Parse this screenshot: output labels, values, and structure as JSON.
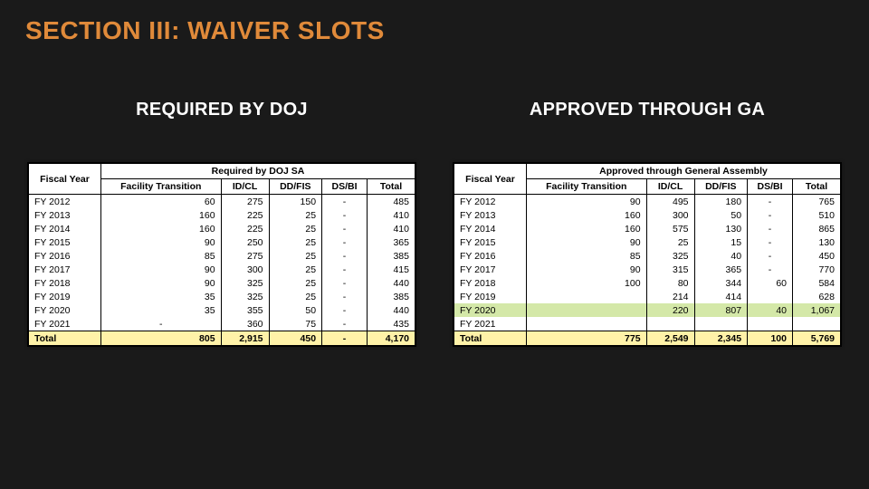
{
  "title": "SECTION III: WAIVER SLOTS",
  "left": {
    "heading": "REQUIRED BY DOJ",
    "super_header": "Required by DOJ SA",
    "fiscal_hdr": "Fiscal Year",
    "cols": [
      "Facility Transition",
      "ID/CL",
      "DD/FIS",
      "DS/BI",
      "Total"
    ],
    "rows": [
      {
        "fy": "FY 2012",
        "v": [
          "60",
          "275",
          "150",
          "-",
          "485"
        ],
        "hl": false
      },
      {
        "fy": "FY 2013",
        "v": [
          "160",
          "225",
          "25",
          "-",
          "410"
        ],
        "hl": false
      },
      {
        "fy": "FY 2014",
        "v": [
          "160",
          "225",
          "25",
          "-",
          "410"
        ],
        "hl": false
      },
      {
        "fy": "FY 2015",
        "v": [
          "90",
          "250",
          "25",
          "-",
          "365"
        ],
        "hl": false
      },
      {
        "fy": "FY 2016",
        "v": [
          "85",
          "275",
          "25",
          "-",
          "385"
        ],
        "hl": false
      },
      {
        "fy": "FY 2017",
        "v": [
          "90",
          "300",
          "25",
          "-",
          "415"
        ],
        "hl": false
      },
      {
        "fy": "FY 2018",
        "v": [
          "90",
          "325",
          "25",
          "-",
          "440"
        ],
        "hl": false
      },
      {
        "fy": "FY 2019",
        "v": [
          "35",
          "325",
          "25",
          "-",
          "385"
        ],
        "hl": false
      },
      {
        "fy": "FY 2020",
        "v": [
          "35",
          "355",
          "50",
          "-",
          "440"
        ],
        "hl": false
      },
      {
        "fy": "FY 2021",
        "v": [
          "-",
          "360",
          "75",
          "-",
          "435"
        ],
        "hl": false
      }
    ],
    "total_label": "Total",
    "totals": [
      "805",
      "2,915",
      "450",
      "-",
      "4,170"
    ]
  },
  "right": {
    "heading": "APPROVED THROUGH GA",
    "super_header": "Approved through General Assembly",
    "fiscal_hdr": "Fiscal Year",
    "cols": [
      "Facility Transition",
      "ID/CL",
      "DD/FIS",
      "DS/BI",
      "Total"
    ],
    "rows": [
      {
        "fy": "FY 2012",
        "v": [
          "90",
          "495",
          "180",
          "-",
          "765"
        ],
        "hl": false
      },
      {
        "fy": "FY 2013",
        "v": [
          "160",
          "300",
          "50",
          "-",
          "510"
        ],
        "hl": false
      },
      {
        "fy": "FY 2014",
        "v": [
          "160",
          "575",
          "130",
          "-",
          "865"
        ],
        "hl": false
      },
      {
        "fy": "FY 2015",
        "v": [
          "90",
          "25",
          "15",
          "-",
          "130"
        ],
        "hl": false
      },
      {
        "fy": "FY 2016",
        "v": [
          "85",
          "325",
          "40",
          "-",
          "450"
        ],
        "hl": false
      },
      {
        "fy": "FY 2017",
        "v": [
          "90",
          "315",
          "365",
          "-",
          "770"
        ],
        "hl": false
      },
      {
        "fy": "FY 2018",
        "v": [
          "100",
          "80",
          "344",
          "60",
          "584"
        ],
        "hl": false
      },
      {
        "fy": "FY 2019",
        "v": [
          "",
          "214",
          "414",
          "",
          "628"
        ],
        "hl": false
      },
      {
        "fy": "FY 2020",
        "v": [
          "",
          "220",
          "807",
          "40",
          "1,067"
        ],
        "hl": true
      },
      {
        "fy": "FY 2021",
        "v": [
          "",
          "",
          "",
          "",
          ""
        ],
        "hl": false
      }
    ],
    "total_label": "Total",
    "totals": [
      "775",
      "2,549",
      "2,345",
      "100",
      "5,769"
    ]
  },
  "style": {
    "title_color": "#e08a3a",
    "bg": "#1a1a1a",
    "highlight": "#d4e8a8",
    "total_bg": "#fff2a8",
    "heading_color": "#ffffff"
  }
}
